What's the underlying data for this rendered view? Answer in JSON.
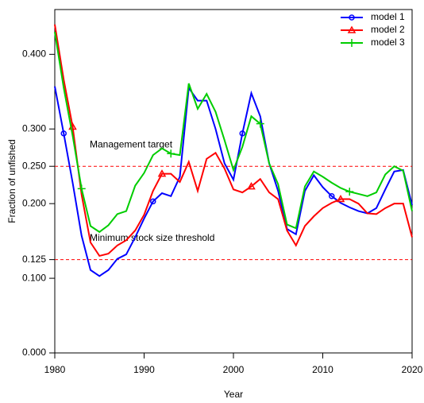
{
  "chart_data": {
    "type": "line",
    "xlabel": "Year",
    "ylabel": "Fraction of unfished",
    "x": [
      1980,
      1981,
      1982,
      1983,
      1984,
      1985,
      1986,
      1987,
      1988,
      1989,
      1990,
      1991,
      1992,
      1993,
      1994,
      1995,
      1996,
      1997,
      1998,
      1999,
      2000,
      2001,
      2002,
      2003,
      2004,
      2005,
      2006,
      2007,
      2008,
      2009,
      2010,
      2011,
      2012,
      2013,
      2014,
      2015,
      2016,
      2017,
      2018,
      2019,
      2020
    ],
    "series": [
      {
        "name": "model 1",
        "color": "#0000ff",
        "marker": "circle",
        "marker_every": 10,
        "marker_offset": 1,
        "values": [
          0.357,
          0.294,
          0.228,
          0.157,
          0.111,
          0.103,
          0.111,
          0.126,
          0.132,
          0.155,
          0.18,
          0.203,
          0.214,
          0.21,
          0.236,
          0.355,
          0.338,
          0.338,
          0.3,
          0.254,
          0.232,
          0.294,
          0.348,
          0.317,
          0.254,
          0.217,
          0.166,
          0.159,
          0.217,
          0.238,
          0.222,
          0.21,
          0.201,
          0.195,
          0.19,
          0.187,
          0.194,
          0.219,
          0.243,
          0.245,
          0.198
        ]
      },
      {
        "name": "model 2",
        "color": "#ff0000",
        "marker": "triangle",
        "marker_every": 10,
        "marker_offset": 2,
        "values": [
          0.44,
          0.366,
          0.303,
          0.212,
          0.148,
          0.13,
          0.133,
          0.144,
          0.151,
          0.164,
          0.185,
          0.217,
          0.24,
          0.24,
          0.229,
          0.256,
          0.217,
          0.26,
          0.268,
          0.247,
          0.219,
          0.215,
          0.223,
          0.233,
          0.215,
          0.206,
          0.164,
          0.144,
          0.17,
          0.183,
          0.194,
          0.201,
          0.206,
          0.206,
          0.2,
          0.187,
          0.186,
          0.194,
          0.2,
          0.2,
          0.155
        ]
      },
      {
        "name": "model 3",
        "color": "#00cd00",
        "marker": "plus",
        "marker_every": 10,
        "marker_offset": 3,
        "values": [
          0.43,
          0.355,
          0.291,
          0.22,
          0.17,
          0.162,
          0.171,
          0.186,
          0.19,
          0.224,
          0.241,
          0.265,
          0.274,
          0.267,
          0.265,
          0.361,
          0.327,
          0.347,
          0.323,
          0.285,
          0.245,
          0.276,
          0.317,
          0.307,
          0.254,
          0.226,
          0.172,
          0.167,
          0.223,
          0.243,
          0.236,
          0.228,
          0.221,
          0.216,
          0.213,
          0.21,
          0.215,
          0.239,
          0.25,
          0.244,
          0.19
        ]
      }
    ],
    "hlines": [
      {
        "value": 0.25,
        "label": "Management target",
        "color": "#ff0000"
      },
      {
        "value": 0.125,
        "label": "Minimum stock size threshold",
        "color": "#ff0000"
      }
    ],
    "xlim": [
      1980,
      2020
    ],
    "xticks": [
      1980,
      1990,
      2000,
      2010,
      2020
    ],
    "ylim": [
      0,
      0.46
    ],
    "yticks": [
      {
        "value": 0,
        "label": "0.000"
      },
      {
        "value": 0.1,
        "label": "0.100"
      },
      {
        "value": 0.125,
        "label": "0.125"
      },
      {
        "value": 0.2,
        "label": "0.200"
      },
      {
        "value": 0.25,
        "label": "0.250"
      },
      {
        "value": 0.3,
        "label": "0.300"
      },
      {
        "value": 0.4,
        "label": "0.400"
      }
    ],
    "legend": "top-right",
    "grid": false
  }
}
